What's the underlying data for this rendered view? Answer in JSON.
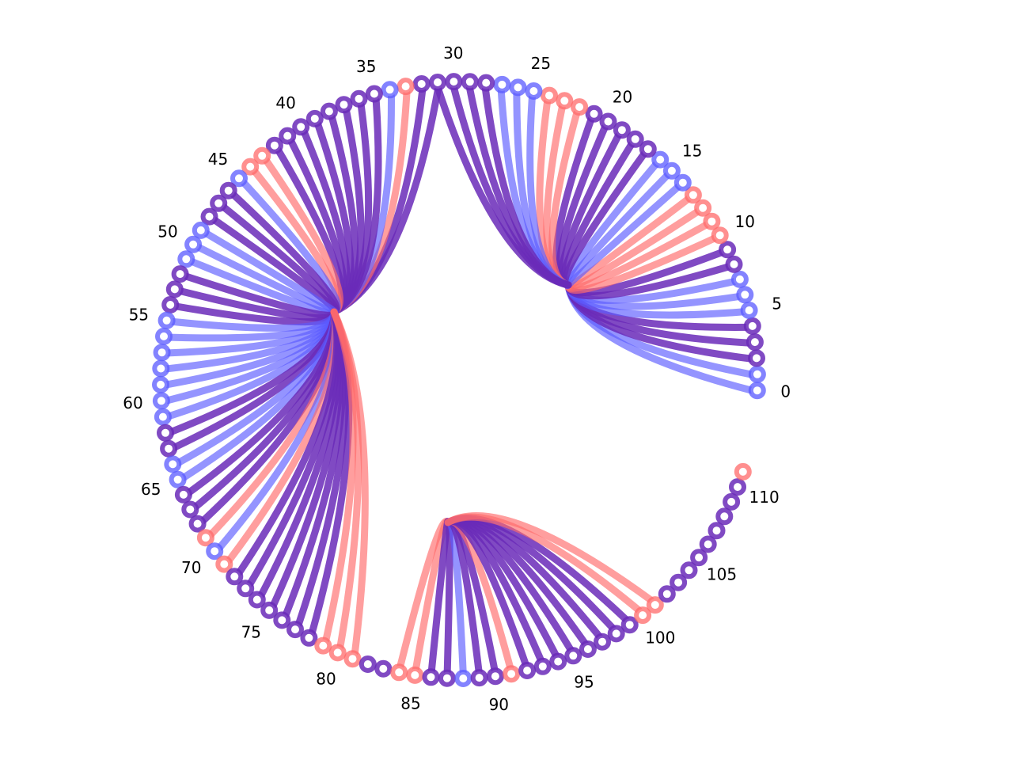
{
  "diagram": {
    "node_count": 112,
    "colors": {
      "blue": "#5a5aff",
      "red": "#ff6a6a",
      "purple": "#6a2ab8",
      "node_center": "#ffffff"
    },
    "labels": [
      "0",
      "5",
      "10",
      "15",
      "20",
      "25",
      "30",
      "35",
      "40",
      "45",
      "50",
      "55",
      "60",
      "65",
      "70",
      "75",
      "80",
      "85",
      "90",
      "95",
      "100",
      "105",
      "110"
    ],
    "hubs": [
      {
        "name": "hub-a",
        "nodes": [
          0,
          1,
          2,
          3,
          4,
          5,
          6,
          7,
          8,
          9,
          10,
          11,
          12,
          13,
          14,
          15,
          16,
          17,
          18,
          19,
          20,
          21,
          22,
          23,
          24,
          25,
          26,
          27,
          28,
          29,
          30,
          31
        ]
      },
      {
        "name": "hub-b",
        "nodes": [
          31,
          32,
          33,
          34,
          35,
          36,
          37,
          38,
          39,
          40,
          41,
          42,
          43,
          44,
          45,
          46,
          47,
          48,
          49,
          50,
          51,
          52,
          53,
          54,
          55,
          56,
          57,
          58,
          59,
          60,
          61,
          62,
          63,
          64,
          65,
          66,
          67,
          68,
          69,
          70,
          71,
          72,
          73,
          74,
          75,
          76,
          77,
          78,
          79,
          80,
          81
        ]
      },
      {
        "name": "hub-c",
        "nodes": [
          84,
          85,
          86,
          87,
          88,
          89,
          90,
          91,
          92,
          93,
          94,
          95,
          96,
          97,
          98,
          99,
          100,
          101
        ]
      }
    ],
    "edge_colors": {
      "0": "blue",
      "1": "blue",
      "2": "purple",
      "3": "purple",
      "4": "purple",
      "5": "blue",
      "6": "blue",
      "7": "blue",
      "8": "purple",
      "9": "purple",
      "10": "red",
      "11": "red",
      "12": "red",
      "13": "red",
      "14": "blue",
      "15": "blue",
      "16": "blue",
      "17": "purple",
      "18": "purple",
      "19": "purple",
      "20": "purple",
      "21": "purple",
      "22": "red",
      "23": "red",
      "24": "red",
      "25": "blue",
      "26": "blue",
      "27": "blue",
      "28": "purple",
      "29": "purple",
      "30": "purple",
      "31": "purple",
      "32": "purple",
      "33": "red",
      "34": "blue",
      "35": "purple",
      "36": "purple",
      "37": "purple",
      "38": "purple",
      "39": "purple",
      "40": "purple",
      "41": "purple",
      "42": "purple",
      "43": "red",
      "44": "red",
      "45": "blue",
      "46": "purple",
      "47": "purple",
      "48": "purple",
      "49": "blue",
      "50": "blue",
      "51": "blue",
      "52": "purple",
      "53": "purple",
      "54": "purple",
      "55": "blue",
      "56": "blue",
      "57": "blue",
      "58": "blue",
      "59": "blue",
      "60": "blue",
      "61": "blue",
      "62": "purple",
      "63": "purple",
      "64": "blue",
      "65": "blue",
      "66": "purple",
      "67": "purple",
      "68": "purple",
      "69": "red",
      "70": "blue",
      "71": "red",
      "72": "purple",
      "73": "purple",
      "74": "purple",
      "75": "purple",
      "76": "purple",
      "77": "purple",
      "78": "purple",
      "79": "red",
      "80": "red",
      "81": "red",
      "84": "red",
      "85": "red",
      "86": "purple",
      "87": "purple",
      "88": "blue",
      "89": "purple",
      "90": "purple",
      "91": "red",
      "94": "purple",
      "95": "purple",
      "96": "purple",
      "97": "purple",
      "98": "purple",
      "99": "purple",
      "100": "red",
      "101": "red"
    },
    "node_colors": {
      "0": "blue",
      "1": "blue",
      "2": "purple",
      "3": "purple",
      "4": "purple",
      "5": "blue",
      "6": "blue",
      "7": "blue",
      "8": "purple",
      "9": "purple",
      "10": "red",
      "11": "red",
      "12": "red",
      "13": "red",
      "14": "blue",
      "15": "blue",
      "16": "blue",
      "17": "purple",
      "18": "purple",
      "19": "purple",
      "20": "purple",
      "21": "purple",
      "22": "red",
      "23": "red",
      "24": "red",
      "25": "blue",
      "26": "blue",
      "27": "blue",
      "28": "purple",
      "29": "purple",
      "30": "purple",
      "31": "purple",
      "32": "purple",
      "33": "red",
      "34": "blue",
      "35": "purple",
      "36": "purple",
      "37": "purple",
      "38": "purple",
      "39": "purple",
      "40": "purple",
      "41": "purple",
      "42": "purple",
      "43": "red",
      "44": "red",
      "45": "blue",
      "46": "purple",
      "47": "purple",
      "48": "purple",
      "49": "blue",
      "50": "blue",
      "51": "blue",
      "52": "purple",
      "53": "purple",
      "54": "purple",
      "55": "blue",
      "56": "blue",
      "57": "blue",
      "58": "blue",
      "59": "blue",
      "60": "blue",
      "61": "blue",
      "62": "purple",
      "63": "purple",
      "64": "blue",
      "65": "blue",
      "66": "purple",
      "67": "purple",
      "68": "purple",
      "69": "red",
      "70": "blue",
      "71": "red",
      "72": "purple",
      "73": "purple",
      "74": "purple",
      "75": "purple",
      "76": "purple",
      "77": "purple",
      "78": "purple",
      "79": "red",
      "80": "red",
      "81": "red",
      "82": "purple",
      "83": "purple",
      "84": "red",
      "85": "red",
      "86": "purple",
      "87": "purple",
      "88": "blue",
      "89": "purple",
      "90": "purple",
      "91": "red",
      "92": "purple",
      "93": "purple",
      "94": "purple",
      "95": "purple",
      "96": "purple",
      "97": "purple",
      "98": "purple",
      "99": "purple",
      "100": "red",
      "101": "red",
      "102": "purple",
      "103": "purple",
      "104": "purple",
      "105": "purple",
      "106": "purple",
      "107": "purple",
      "108": "purple",
      "109": "purple",
      "110": "purple",
      "111": "red"
    }
  }
}
